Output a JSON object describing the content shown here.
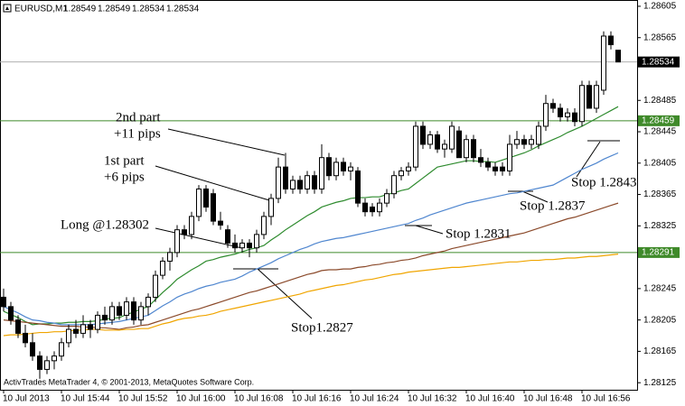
{
  "chart_data": {
    "type": "candlestick",
    "symbol": "EURUSD,M1",
    "footer": "ActivTrades MetaTrader 4, © 2001-2013, MetaQuotes Software Corp.",
    "categories": [
      "10 Jul 2013",
      null,
      null,
      null,
      null,
      null,
      null,
      null,
      "10 Jul 15:44",
      null,
      null,
      null,
      null,
      null,
      null,
      null,
      "10 Jul 15:52",
      null,
      null,
      null,
      null,
      null,
      null,
      null,
      "10 Jul 16:00",
      null,
      null,
      null,
      null,
      null,
      null,
      null,
      "10 Jul 16:08",
      null,
      null,
      null,
      null,
      null,
      null,
      null,
      "10 Jul 16:16",
      null,
      null,
      null,
      null,
      null,
      null,
      null,
      "10 Jul 16:24",
      null,
      null,
      null,
      null,
      null,
      null,
      null,
      "10 Jul 16:32",
      null,
      null,
      null,
      null,
      null,
      null,
      null,
      "10 Jul 16:40",
      null,
      null,
      null,
      null,
      null,
      null,
      null,
      "10 Jul 16:48",
      null,
      null,
      null,
      null,
      null,
      null,
      null,
      "10 Jul 16:56",
      null,
      null,
      null,
      null,
      null
    ],
    "open": [
      1.28234,
      1.28222,
      1.28205,
      1.28188,
      1.28176,
      1.28159,
      1.28142,
      1.28153,
      1.28159,
      1.28176,
      1.28193,
      1.28188,
      1.28199,
      1.28193,
      1.28211,
      1.28205,
      1.28222,
      1.28211,
      1.28228,
      1.28205,
      1.28222,
      1.28234,
      1.28262,
      1.2828,
      1.28291,
      1.2832,
      1.28314,
      1.28337,
      1.28372,
      1.28366,
      1.28331,
      1.2832,
      1.28303,
      1.28297,
      1.28303,
      1.28297,
      1.28314,
      1.28337,
      1.2836,
      1.284,
      1.28372,
      1.28383,
      1.28372,
      1.28389,
      1.28372,
      1.28412,
      1.28389,
      1.28406,
      1.28395,
      1.28395,
      1.28354,
      1.28349,
      1.28343,
      1.28354,
      1.28366,
      1.28389,
      1.28395,
      1.284,
      1.28452,
      1.28429,
      1.28441,
      1.28423,
      1.28423,
      1.28446,
      1.28412,
      1.28435,
      1.28412,
      1.28406,
      1.284,
      1.284,
      1.28395,
      1.28429,
      1.28435,
      1.28429,
      1.28429,
      1.28452,
      1.28481,
      1.28475,
      1.28464,
      1.28469,
      1.28458,
      1.28504,
      1.28475,
      1.28498,
      1.28567,
      1.28549
    ],
    "high": [
      1.28245,
      1.28228,
      1.28211,
      1.28199,
      1.28188,
      1.28165,
      1.28159,
      1.28165,
      1.28182,
      1.28199,
      1.28205,
      1.28211,
      1.28205,
      1.28216,
      1.28222,
      1.28228,
      1.28228,
      1.28234,
      1.28234,
      1.28228,
      1.28239,
      1.28268,
      1.28285,
      1.28297,
      1.28326,
      1.28326,
      1.28343,
      1.28377,
      1.28377,
      1.28372,
      1.28343,
      1.28326,
      1.28314,
      1.28308,
      1.28308,
      1.2832,
      1.28343,
      1.28366,
      1.28412,
      1.28418,
      1.28389,
      1.28389,
      1.28395,
      1.28395,
      1.28429,
      1.28418,
      1.28412,
      1.28412,
      1.28406,
      1.284,
      1.2836,
      1.28354,
      1.2836,
      1.28372,
      1.28395,
      1.284,
      1.28406,
      1.28458,
      1.28458,
      1.28446,
      1.28446,
      1.28435,
      1.28458,
      1.28452,
      1.28441,
      1.28441,
      1.28423,
      1.28412,
      1.28406,
      1.28406,
      1.28441,
      1.28446,
      1.28441,
      1.28441,
      1.28458,
      1.28492,
      1.28487,
      1.28481,
      1.28475,
      1.28475,
      1.2851,
      1.2851,
      1.2851,
      1.28573,
      1.28573,
      1.28549
    ],
    "low": [
      1.28216,
      1.28199,
      1.28182,
      1.2817,
      1.28153,
      1.2813,
      1.28136,
      1.28142,
      1.28153,
      1.2817,
      1.28182,
      1.28182,
      1.28182,
      1.28188,
      1.28199,
      1.28199,
      1.28205,
      1.28205,
      1.28199,
      1.28199,
      1.28211,
      1.28228,
      1.28257,
      1.28268,
      1.28285,
      1.28308,
      1.28308,
      1.28331,
      1.28343,
      1.28326,
      1.2832,
      1.28297,
      1.28291,
      1.28291,
      1.28285,
      1.28291,
      1.28308,
      1.28326,
      1.28354,
      1.28366,
      1.28366,
      1.28366,
      1.28366,
      1.28366,
      1.28366,
      1.28383,
      1.28383,
      1.28389,
      1.28383,
      1.28349,
      1.28337,
      1.28337,
      1.28337,
      1.28349,
      1.2836,
      1.28383,
      1.28389,
      1.28395,
      1.28423,
      1.28423,
      1.28418,
      1.28412,
      1.28418,
      1.28412,
      1.28406,
      1.28406,
      1.284,
      1.28395,
      1.28389,
      1.28389,
      1.28389,
      1.28423,
      1.28423,
      1.28423,
      1.28423,
      1.28446,
      1.28469,
      1.28458,
      1.28458,
      1.28452,
      1.28452,
      1.28475,
      1.28469,
      1.28492,
      1.2855,
      1.28534
    ],
    "close": [
      1.28222,
      1.28205,
      1.28188,
      1.28176,
      1.28159,
      1.28142,
      1.28153,
      1.28159,
      1.28176,
      1.28193,
      1.28188,
      1.28199,
      1.28193,
      1.28211,
      1.28205,
      1.28222,
      1.28211,
      1.28228,
      1.28205,
      1.28222,
      1.28234,
      1.28262,
      1.2828,
      1.28291,
      1.2832,
      1.28314,
      1.28337,
      1.28372,
      1.28349,
      1.28331,
      1.28326,
      1.28303,
      1.28297,
      1.28303,
      1.28297,
      1.28314,
      1.28337,
      1.2836,
      1.284,
      1.28372,
      1.28383,
      1.28372,
      1.28389,
      1.28372,
      1.28412,
      1.28389,
      1.28406,
      1.28395,
      1.284,
      1.28354,
      1.28343,
      1.28343,
      1.28354,
      1.28366,
      1.28389,
      1.28395,
      1.284,
      1.28452,
      1.28429,
      1.28441,
      1.28423,
      1.28429,
      1.28452,
      1.28412,
      1.28435,
      1.28412,
      1.28406,
      1.284,
      1.28395,
      1.28395,
      1.28429,
      1.28435,
      1.28429,
      1.28435,
      1.28452,
      1.28481,
      1.28475,
      1.28464,
      1.28469,
      1.28458,
      1.28504,
      1.28475,
      1.28504,
      1.28567,
      1.28556,
      1.28534
    ],
    "up_color": "#ffffff",
    "down_color": "#000000",
    "outline_color": "#000000",
    "indicators": [
      {
        "color": "#2e8b2e",
        "values": [
          1.28216,
          1.28212,
          1.28208,
          1.28203,
          1.28199,
          1.282,
          1.282,
          1.28201,
          1.28201,
          1.28202,
          1.28202,
          1.28203,
          1.28203,
          1.28204,
          1.28206,
          1.28207,
          1.28208,
          1.28212,
          1.28215,
          1.28219,
          1.28222,
          1.28231,
          1.2824,
          1.28248,
          1.28257,
          1.28263,
          1.28269,
          1.28274,
          1.2828,
          1.28282,
          1.28285,
          1.28287,
          1.28289,
          1.28292,
          1.28295,
          1.28297,
          1.283,
          1.28307,
          1.28313,
          1.2832,
          1.28326,
          1.28332,
          1.28338,
          1.28343,
          1.28349,
          1.28352,
          1.28355,
          1.28357,
          1.2836,
          1.28361,
          1.28361,
          1.28362,
          1.28362,
          1.28365,
          1.28367,
          1.2837,
          1.28372,
          1.28379,
          1.28386,
          1.28393,
          1.284,
          1.28402,
          1.28404,
          1.28406,
          1.28408,
          1.28408,
          1.28407,
          1.28407,
          1.28406,
          1.28409,
          1.28412,
          1.28415,
          1.28418,
          1.28422,
          1.28427,
          1.28431,
          1.28435,
          1.28439,
          1.28444,
          1.28448,
          1.28452,
          1.28457,
          1.28462,
          1.28467,
          1.28472,
          1.28477
        ]
      },
      {
        "color": "#4f86cf",
        "values": [
          1.28222,
          1.28218,
          1.28214,
          1.28209,
          1.28205,
          1.28204,
          1.28202,
          1.28201,
          1.28199,
          1.28199,
          1.28199,
          1.28199,
          1.28199,
          1.282,
          1.28201,
          1.28202,
          1.28203,
          1.28205,
          1.28207,
          1.28209,
          1.28211,
          1.28217,
          1.28223,
          1.28228,
          1.28234,
          1.28238,
          1.28241,
          1.28245,
          1.28248,
          1.2825,
          1.28253,
          1.28255,
          1.28257,
          1.28261,
          1.28266,
          1.2827,
          1.28274,
          1.28278,
          1.28283,
          1.28287,
          1.28291,
          1.28295,
          1.28298,
          1.28302,
          1.28305,
          1.28307,
          1.28309,
          1.2831,
          1.28312,
          1.28314,
          1.28316,
          1.28318,
          1.2832,
          1.28322,
          1.28324,
          1.28326,
          1.28328,
          1.28332,
          1.28335,
          1.28339,
          1.28342,
          1.28345,
          1.28348,
          1.28351,
          1.28354,
          1.28356,
          1.28358,
          1.2836,
          1.28362,
          1.28364,
          1.28366,
          1.28367,
          1.28369,
          1.28371,
          1.28373,
          1.28375,
          1.28377,
          1.28382,
          1.28387,
          1.28392,
          1.28397,
          1.28401,
          1.28405,
          1.2841,
          1.28414,
          1.28418
        ]
      },
      {
        "color": "#8b4a2b",
        "values": [
          1.28205,
          1.28204,
          1.28203,
          1.28202,
          1.28201,
          1.282,
          1.28199,
          1.28198,
          1.28197,
          1.28197,
          1.28197,
          1.28196,
          1.28196,
          1.28195,
          1.28195,
          1.28194,
          1.28193,
          1.28195,
          1.28196,
          1.28198,
          1.28199,
          1.28202,
          1.28205,
          1.28208,
          1.28211,
          1.28214,
          1.28217,
          1.28219,
          1.28222,
          1.28225,
          1.28228,
          1.28231,
          1.28234,
          1.28237,
          1.2824,
          1.28242,
          1.28245,
          1.28248,
          1.28251,
          1.28254,
          1.28257,
          1.2826,
          1.28263,
          1.28265,
          1.28268,
          1.28269,
          1.28269,
          1.2827,
          1.2827,
          1.28272,
          1.28273,
          1.28275,
          1.28276,
          1.28278,
          1.28279,
          1.28281,
          1.28282,
          1.28284,
          1.28287,
          1.28289,
          1.28291,
          1.28293,
          1.28296,
          1.28298,
          1.283,
          1.28302,
          1.28304,
          1.28306,
          1.28308,
          1.2831,
          1.28312,
          1.28314,
          1.28316,
          1.28319,
          1.28322,
          1.28325,
          1.28328,
          1.28331,
          1.28334,
          1.28336,
          1.28339,
          1.28342,
          1.28345,
          1.28348,
          1.28351,
          1.28354
        ]
      },
      {
        "color": "#f0a500",
        "values": [
          1.28185,
          1.28186,
          1.28186,
          1.28187,
          1.28188,
          1.28189,
          1.28189,
          1.2819,
          1.2819,
          1.28191,
          1.28192,
          1.28192,
          1.28193,
          1.28193,
          1.28192,
          1.28192,
          1.28192,
          1.28193,
          1.28193,
          1.28194,
          1.28194,
          1.28197,
          1.282,
          1.28202,
          1.28205,
          1.28207,
          1.28208,
          1.2821,
          1.28211,
          1.28213,
          1.28216,
          1.28218,
          1.2822,
          1.28222,
          1.28224,
          1.28226,
          1.28228,
          1.2823,
          1.28232,
          1.28234,
          1.28236,
          1.28238,
          1.28241,
          1.28243,
          1.28245,
          1.28247,
          1.28249,
          1.2825,
          1.28252,
          1.28254,
          1.28256,
          1.28257,
          1.28259,
          1.28261,
          1.28263,
          1.28264,
          1.28266,
          1.28267,
          1.28268,
          1.28269,
          1.2827,
          1.28271,
          1.28272,
          1.28272,
          1.28273,
          1.28274,
          1.28275,
          1.28276,
          1.28277,
          1.28278,
          1.28279,
          1.28279,
          1.2828,
          1.28281,
          1.28281,
          1.28282,
          1.28282,
          1.28283,
          1.28284,
          1.28284,
          1.28285,
          1.28286,
          1.28286,
          1.28287,
          1.28288,
          1.28289
        ]
      }
    ],
    "hlines": [
      1.28459,
      1.28291
    ],
    "hline_color": "#3f8a2a",
    "price_line_color": "#b0b0b0",
    "ylim": [
      1.28116,
      1.28613
    ],
    "yticks": [
      1.28605,
      1.28565,
      1.28485,
      1.28445,
      1.28405,
      1.28365,
      1.28325,
      1.28245,
      1.28205,
      1.28165,
      1.28125
    ],
    "grid": false,
    "annotations": [
      "2nd part",
      "+11 pips",
      "1st part",
      "+6 pips",
      "Long @1.28302",
      "Stop 1.2843",
      "Stop 1.2837",
      "Stop 1.2831",
      "Stop1.2827"
    ]
  }
}
